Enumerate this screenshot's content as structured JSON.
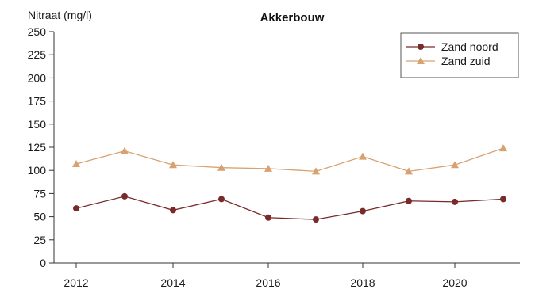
{
  "chart_data": {
    "type": "line",
    "title": "Akkerbouw",
    "ylabel": "Nitraat (mg/l)",
    "xlabel": "",
    "x": [
      2012,
      2013,
      2014,
      2015,
      2016,
      2017,
      2018,
      2019,
      2020,
      2021
    ],
    "xticks": [
      "2012",
      "2014",
      "2016",
      "2018",
      "2020"
    ],
    "xlim": [
      2012,
      2021
    ],
    "ylim": [
      0,
      250
    ],
    "yticks": [
      "0",
      "25",
      "50",
      "75",
      "100",
      "125",
      "150",
      "175",
      "200",
      "225",
      "250"
    ],
    "grid": false,
    "legend_position": "top-right",
    "series": [
      {
        "name": "Zand noord",
        "marker": "circle",
        "color": "#7a2a2a",
        "values": [
          59,
          72,
          57,
          69,
          49,
          47,
          56,
          67,
          66,
          69
        ]
      },
      {
        "name": "Zand zuid",
        "marker": "triangle",
        "color": "#d9a070",
        "values": [
          107,
          121,
          106,
          103,
          102,
          99,
          115,
          99,
          106,
          124
        ]
      }
    ]
  }
}
